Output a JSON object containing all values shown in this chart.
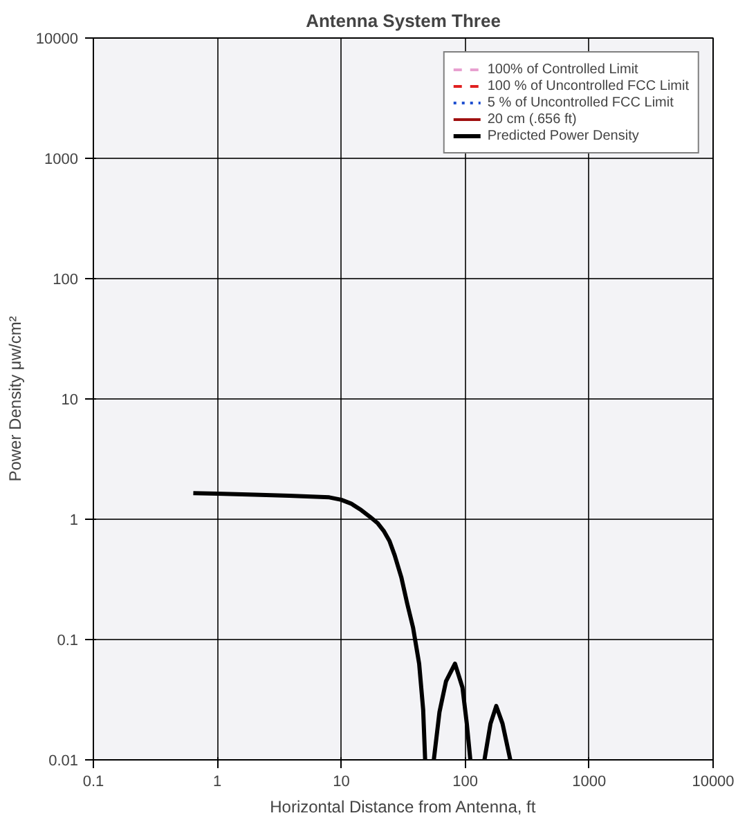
{
  "chart_data": {
    "type": "line",
    "title": "Antenna System Three",
    "xlabel": "Horizontal Distance from Antenna, ft",
    "ylabel": "Power Density μw/cm²",
    "log": "xy",
    "grid": true,
    "legend": "top right",
    "xlim": [
      0.1,
      10000
    ],
    "ylim": [
      0.01,
      10000
    ],
    "xticks": [
      0.1,
      1,
      10,
      100,
      1000,
      10000
    ],
    "yticks": [
      0.01,
      0.1,
      1,
      10,
      100,
      1000,
      10000
    ],
    "x": [
      0.64,
      1,
      2,
      3.8,
      8,
      10,
      12,
      14.5,
      17,
      19.6,
      22,
      24.5,
      27,
      30.5,
      34,
      38,
      42.5,
      45.8,
      47.5,
      51,
      55.8,
      62,
      70,
      82.7,
      95,
      103,
      110,
      125,
      143,
      160,
      178,
      200,
      231
    ],
    "series": [
      {
        "name": "100% of Controlled Limit",
        "color": "#e8a0d0",
        "line_style": "dashed",
        "values": [
          null,
          null,
          null,
          null,
          null,
          null,
          null,
          null,
          null,
          null,
          null,
          null,
          null,
          null,
          null,
          null,
          null,
          null,
          null,
          null,
          null,
          null,
          null,
          null,
          null,
          null,
          null,
          null,
          null,
          null,
          null,
          null,
          null
        ]
      },
      {
        "name": "100 % of Uncontrolled FCC Limit",
        "color": "#e02020",
        "line_style": "dashed",
        "values": [
          null,
          null,
          null,
          null,
          null,
          null,
          null,
          null,
          null,
          null,
          null,
          null,
          null,
          null,
          null,
          null,
          null,
          null,
          null,
          null,
          null,
          null,
          null,
          null,
          null,
          null,
          null,
          null,
          null,
          null,
          null,
          null,
          null
        ]
      },
      {
        "name": "5 % of Uncontrolled FCC Limit",
        "color": "#2050d0",
        "line_style": "dotted",
        "values": [
          null,
          null,
          null,
          null,
          null,
          null,
          null,
          null,
          null,
          null,
          null,
          null,
          null,
          null,
          null,
          null,
          null,
          null,
          null,
          null,
          null,
          null,
          null,
          null,
          null,
          null,
          null,
          null,
          null,
          null,
          null,
          null,
          null
        ]
      },
      {
        "name": "20 cm (.656 ft)",
        "color": "#a01010",
        "line_style": "solid",
        "values": [
          null,
          null,
          null,
          null,
          null,
          null,
          null,
          null,
          null,
          null,
          null,
          null,
          null,
          null,
          null,
          null,
          null,
          null,
          null,
          null,
          null,
          null,
          null,
          null,
          null,
          null,
          null,
          null,
          null,
          null,
          null,
          null,
          null
        ]
      },
      {
        "name": "Predicted Power Density",
        "color": "#000000",
        "line_style": "solid",
        "values": [
          1.65,
          1.63,
          1.6,
          1.57,
          1.52,
          1.45,
          1.35,
          1.19,
          1.05,
          0.93,
          0.8,
          0.66,
          0.5,
          0.33,
          0.2,
          0.125,
          0.063,
          0.026,
          0.01,
          null,
          0.01,
          0.025,
          0.045,
          0.063,
          0.04,
          0.02,
          0.01,
          null,
          0.01,
          0.02,
          0.028,
          0.02,
          0.01
        ]
      }
    ]
  }
}
